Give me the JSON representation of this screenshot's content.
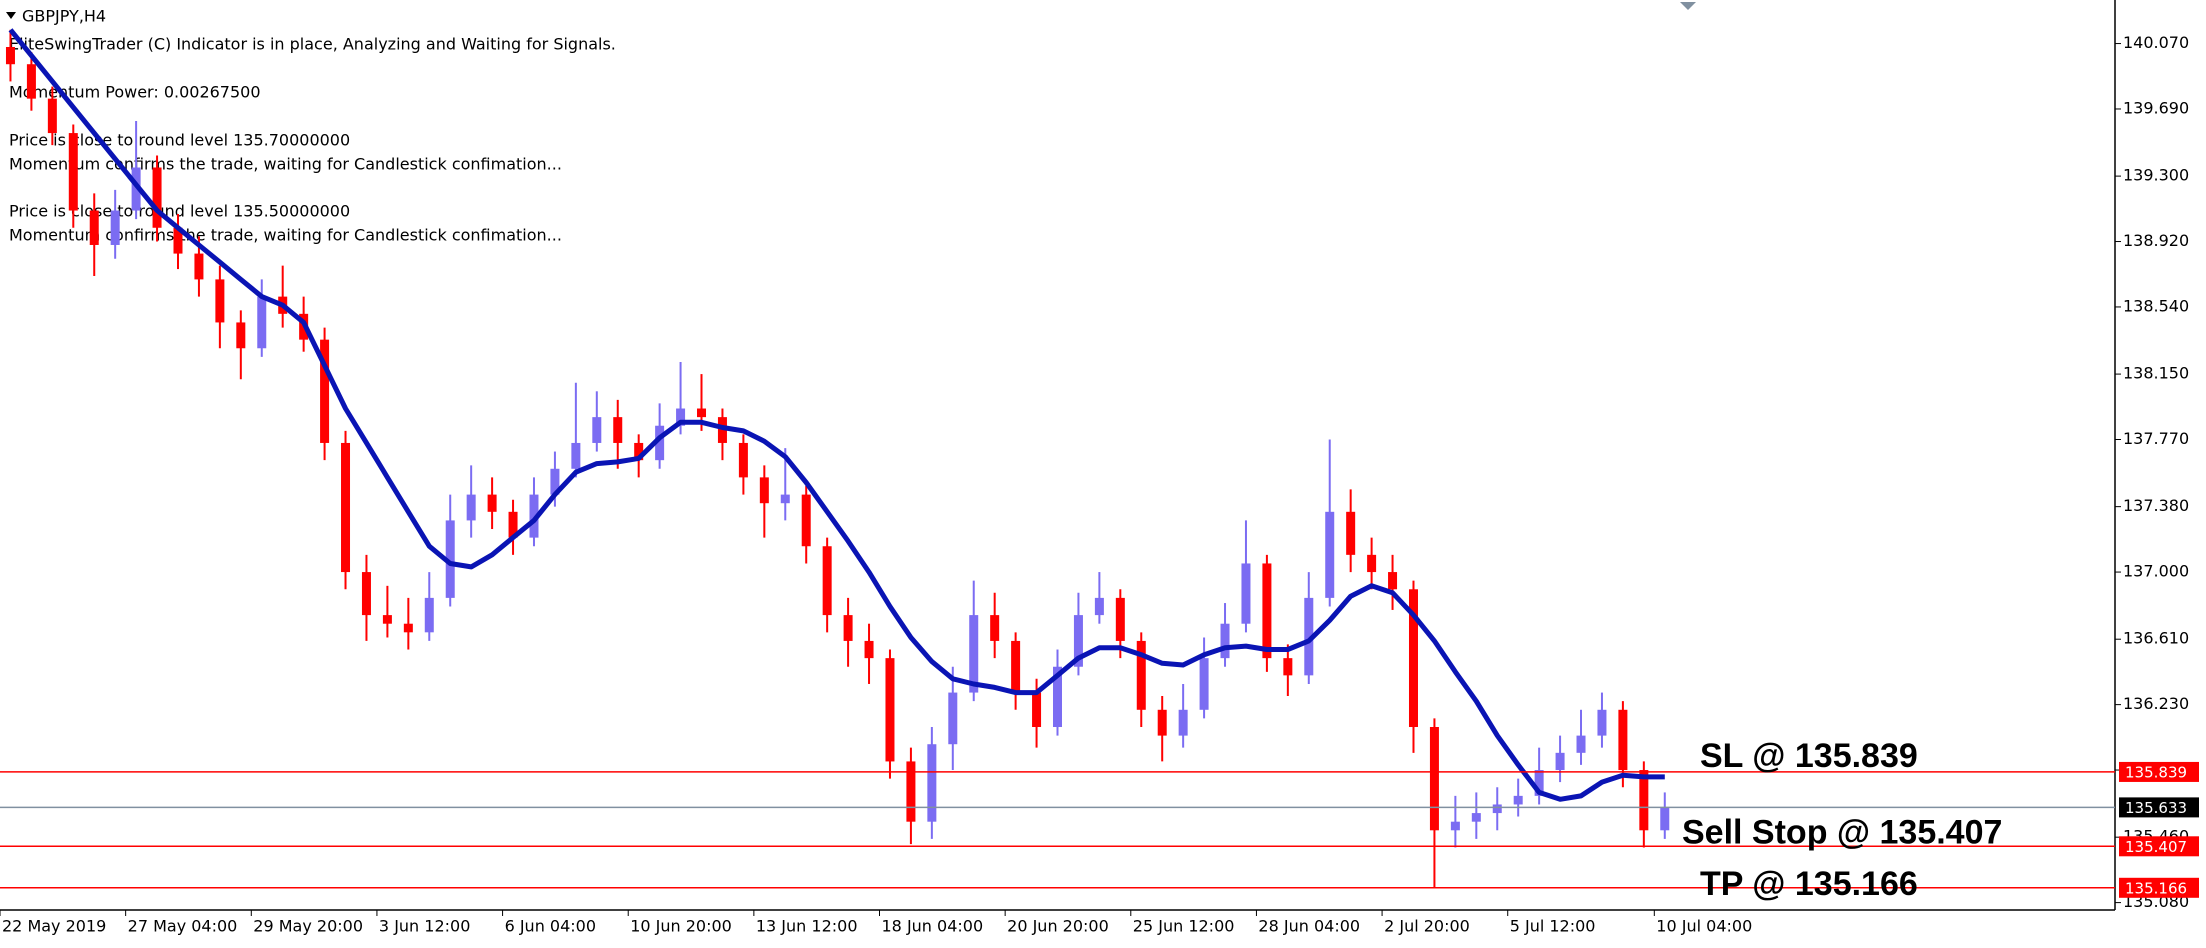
{
  "chart_data": {
    "type": "candlestick",
    "title": "GBPJPY,H4",
    "info_lines": [
      "EliteSwingTrader (C) Indicator is in place, Analyzing and Waiting for Signals.",
      "Momentum Power: 0.00267500",
      "Price is close to round level 135.70000000",
      "Momentum confirms the trade, waiting for Candlestick confimation...",
      "Price is close to round level 135.50000000",
      "Momentum confirms the trade, waiting for Candlestick confimation..."
    ],
    "up_color": "#7b6cf2",
    "down_color": "#ff0000",
    "ma_color": "#0a14b4",
    "candles": [
      [
        140.05,
        140.15,
        139.85,
        139.95
      ],
      [
        139.95,
        140.02,
        139.68,
        139.75
      ],
      [
        139.75,
        139.82,
        139.48,
        139.55
      ],
      [
        139.55,
        139.6,
        139.0,
        139.1
      ],
      [
        139.1,
        139.2,
        138.72,
        138.9
      ],
      [
        138.9,
        139.22,
        138.82,
        139.1
      ],
      [
        139.1,
        139.62,
        139.05,
        139.35
      ],
      [
        139.35,
        139.42,
        138.92,
        139.0
      ],
      [
        139.0,
        139.08,
        138.76,
        138.85
      ],
      [
        138.85,
        138.95,
        138.6,
        138.7
      ],
      [
        138.7,
        138.78,
        138.3,
        138.45
      ],
      [
        138.45,
        138.52,
        138.12,
        138.3
      ],
      [
        138.3,
        138.7,
        138.25,
        138.6
      ],
      [
        138.6,
        138.78,
        138.42,
        138.5
      ],
      [
        138.5,
        138.6,
        138.28,
        138.35
      ],
      [
        138.35,
        138.42,
        137.65,
        137.75
      ],
      [
        137.75,
        137.82,
        136.9,
        137.0
      ],
      [
        137.0,
        137.1,
        136.6,
        136.75
      ],
      [
        136.75,
        136.92,
        136.62,
        136.7
      ],
      [
        136.7,
        136.85,
        136.55,
        136.65
      ],
      [
        136.65,
        137.0,
        136.6,
        136.85
      ],
      [
        136.85,
        137.45,
        136.8,
        137.3
      ],
      [
        137.3,
        137.62,
        137.2,
        137.45
      ],
      [
        137.45,
        137.55,
        137.25,
        137.35
      ],
      [
        137.35,
        137.42,
        137.1,
        137.2
      ],
      [
        137.2,
        137.55,
        137.15,
        137.45
      ],
      [
        137.45,
        137.7,
        137.38,
        137.6
      ],
      [
        137.6,
        138.1,
        137.55,
        137.75
      ],
      [
        137.75,
        138.05,
        137.7,
        137.9
      ],
      [
        137.9,
        138.0,
        137.6,
        137.75
      ],
      [
        137.75,
        137.8,
        137.55,
        137.65
      ],
      [
        137.65,
        137.98,
        137.6,
        137.85
      ],
      [
        137.85,
        138.22,
        137.8,
        137.95
      ],
      [
        137.95,
        138.15,
        137.82,
        137.9
      ],
      [
        137.9,
        137.95,
        137.65,
        137.75
      ],
      [
        137.75,
        137.8,
        137.45,
        137.55
      ],
      [
        137.55,
        137.62,
        137.2,
        137.4
      ],
      [
        137.4,
        137.72,
        137.3,
        137.45
      ],
      [
        137.45,
        137.5,
        137.05,
        137.15
      ],
      [
        137.15,
        137.2,
        136.65,
        136.75
      ],
      [
        136.75,
        136.85,
        136.45,
        136.6
      ],
      [
        136.6,
        136.7,
        136.35,
        136.5
      ],
      [
        136.5,
        136.55,
        135.8,
        135.9
      ],
      [
        135.9,
        135.98,
        135.42,
        135.55
      ],
      [
        135.55,
        136.1,
        135.45,
        136.0
      ],
      [
        136.0,
        136.45,
        135.85,
        136.3
      ],
      [
        136.3,
        136.95,
        136.25,
        136.75
      ],
      [
        136.75,
        136.88,
        136.5,
        136.6
      ],
      [
        136.6,
        136.65,
        136.2,
        136.3
      ],
      [
        136.3,
        136.38,
        135.98,
        136.1
      ],
      [
        136.1,
        136.55,
        136.05,
        136.45
      ],
      [
        136.45,
        136.88,
        136.4,
        136.75
      ],
      [
        136.75,
        137.0,
        136.7,
        136.85
      ],
      [
        136.85,
        136.9,
        136.5,
        136.6
      ],
      [
        136.6,
        136.65,
        136.1,
        136.2
      ],
      [
        136.2,
        136.28,
        135.9,
        136.05
      ],
      [
        136.05,
        136.35,
        135.98,
        136.2
      ],
      [
        136.2,
        136.62,
        136.15,
        136.5
      ],
      [
        136.5,
        136.82,
        136.45,
        136.7
      ],
      [
        136.7,
        137.3,
        136.65,
        137.05
      ],
      [
        137.05,
        137.1,
        136.42,
        136.5
      ],
      [
        136.5,
        136.58,
        136.28,
        136.4
      ],
      [
        136.4,
        137.0,
        136.35,
        136.85
      ],
      [
        136.85,
        137.77,
        136.8,
        137.35
      ],
      [
        137.35,
        137.48,
        137.0,
        137.1
      ],
      [
        137.1,
        137.2,
        136.9,
        137.0
      ],
      [
        137.0,
        137.1,
        136.78,
        136.9
      ],
      [
        136.9,
        136.95,
        135.95,
        136.1
      ],
      [
        136.1,
        136.15,
        135.17,
        135.5
      ],
      [
        135.5,
        135.7,
        135.4,
        135.55
      ],
      [
        135.55,
        135.72,
        135.45,
        135.6
      ],
      [
        135.6,
        135.75,
        135.5,
        135.65
      ],
      [
        135.65,
        135.8,
        135.58,
        135.7
      ],
      [
        135.7,
        135.98,
        135.65,
        135.85
      ],
      [
        135.85,
        136.05,
        135.78,
        135.95
      ],
      [
        135.95,
        136.2,
        135.88,
        136.05
      ],
      [
        136.05,
        136.3,
        135.98,
        136.2
      ],
      [
        136.2,
        136.25,
        135.75,
        135.85
      ],
      [
        135.85,
        135.9,
        135.4,
        135.5
      ],
      [
        135.5,
        135.72,
        135.45,
        135.633
      ]
    ],
    "ma": [
      140.15,
      140.0,
      139.85,
      139.7,
      139.55,
      139.4,
      139.25,
      139.1,
      139.0,
      138.9,
      138.8,
      138.7,
      138.6,
      138.55,
      138.45,
      138.2,
      137.95,
      137.75,
      137.55,
      137.35,
      137.15,
      137.05,
      137.03,
      137.1,
      137.2,
      137.3,
      137.45,
      137.58,
      137.63,
      137.64,
      137.66,
      137.78,
      137.87,
      137.87,
      137.84,
      137.82,
      137.76,
      137.67,
      137.52,
      137.35,
      137.18,
      137.0,
      136.8,
      136.62,
      136.48,
      136.38,
      136.35,
      136.33,
      136.3,
      136.3,
      136.4,
      136.5,
      136.56,
      136.56,
      136.52,
      136.47,
      136.46,
      136.52,
      136.56,
      136.57,
      136.55,
      136.55,
      136.6,
      136.72,
      136.86,
      136.92,
      136.88,
      136.75,
      136.6,
      136.42,
      136.25,
      136.05,
      135.88,
      135.72,
      135.68,
      135.7,
      135.78,
      135.82,
      135.81,
      135.81
    ],
    "xlim": [
      -0.5,
      100.5
    ],
    "xticks": [
      {
        "value": 0,
        "label": "22 May 2019"
      },
      {
        "value": 6,
        "label": "27 May 04:00"
      },
      {
        "value": 12,
        "label": "29 May 20:00"
      },
      {
        "value": 18,
        "label": "3 Jun 12:00"
      },
      {
        "value": 24,
        "label": "6 Jun 04:00"
      },
      {
        "value": 30,
        "label": "10 Jun 20:00"
      },
      {
        "value": 36,
        "label": "13 Jun 12:00"
      },
      {
        "value": 42,
        "label": "18 Jun 04:00"
      },
      {
        "value": 48,
        "label": "20 Jun 20:00"
      },
      {
        "value": 54,
        "label": "25 Jun 12:00"
      },
      {
        "value": 60,
        "label": "28 Jun 04:00"
      },
      {
        "value": 66,
        "label": "2 Jul 20:00"
      },
      {
        "value": 72,
        "label": "5 Jul 12:00"
      },
      {
        "value": 79,
        "label": "10 Jul 04:00"
      }
    ],
    "ylim": [
      135.037,
      140.323
    ],
    "yticks": [
      {
        "value": 140.07,
        "label": "140.070"
      },
      {
        "value": 139.69,
        "label": "139.690"
      },
      {
        "value": 139.3,
        "label": "139.300"
      },
      {
        "value": 138.92,
        "label": "138.920"
      },
      {
        "value": 138.54,
        "label": "138.540"
      },
      {
        "value": 138.15,
        "label": "138.150"
      },
      {
        "value": 137.77,
        "label": "137.770"
      },
      {
        "value": 137.38,
        "label": "137.380"
      },
      {
        "value": 137.0,
        "label": "137.000"
      },
      {
        "value": 136.61,
        "label": "136.610"
      },
      {
        "value": 136.23,
        "label": "136.230"
      },
      {
        "value": 135.85,
        "label": "135.850"
      },
      {
        "value": 135.46,
        "label": "135.460"
      },
      {
        "value": 135.08,
        "label": "135.080"
      }
    ],
    "levels": [
      {
        "value": 135.839,
        "color": "#ff0000",
        "annotation": "SL @ 135.839"
      },
      {
        "value": 135.633,
        "color": "#8090a0"
      },
      {
        "value": 135.407,
        "color": "#ff0000",
        "annotation": "Sell Stop @ 135.407"
      },
      {
        "value": 135.166,
        "color": "#ff0000",
        "annotation": "TP @ 135.166"
      }
    ]
  }
}
